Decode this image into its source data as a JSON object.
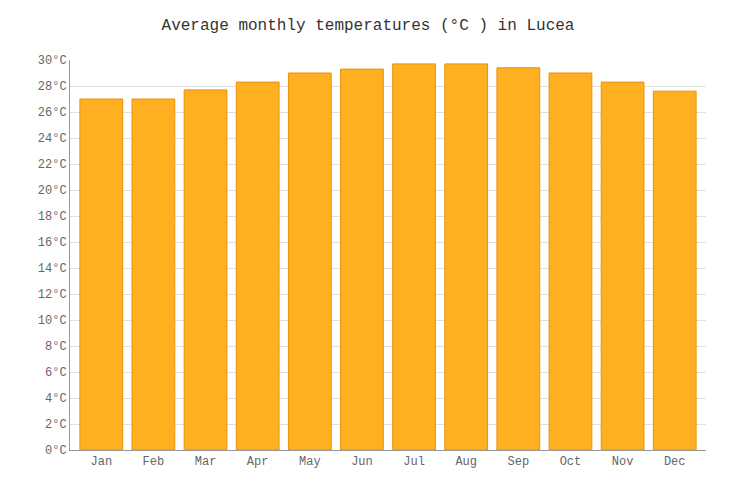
{
  "chart_data": {
    "type": "bar",
    "title": "Average monthly temperatures (°C ) in Lucea",
    "categories": [
      "Jan",
      "Feb",
      "Mar",
      "Apr",
      "May",
      "Jun",
      "Jul",
      "Aug",
      "Sep",
      "Oct",
      "Nov",
      "Dec"
    ],
    "values": [
      27.0,
      27.0,
      27.7,
      28.3,
      29.0,
      29.3,
      29.7,
      29.7,
      29.4,
      29.0,
      28.3,
      27.6
    ],
    "color": "#FFB020",
    "ylim": [
      0,
      30
    ],
    "yticks": [
      {
        "value": 0,
        "label": "0°C"
      },
      {
        "value": 2,
        "label": "2°C"
      },
      {
        "value": 4,
        "label": "4°C"
      },
      {
        "value": 6,
        "label": "6°C"
      },
      {
        "value": 8,
        "label": "8°C"
      },
      {
        "value": 10,
        "label": "10°C"
      },
      {
        "value": 12,
        "label": "12°C"
      },
      {
        "value": 14,
        "label": "14°C"
      },
      {
        "value": 16,
        "label": "16°C"
      },
      {
        "value": 18,
        "label": "18°C"
      },
      {
        "value": 20,
        "label": "20°C"
      },
      {
        "value": 22,
        "label": "22°C"
      },
      {
        "value": 24,
        "label": "24°C"
      },
      {
        "value": 26,
        "label": "26°C"
      },
      {
        "value": 28,
        "label": "28°C"
      },
      {
        "value": 30,
        "label": "30°C"
      }
    ],
    "grid": true
  }
}
